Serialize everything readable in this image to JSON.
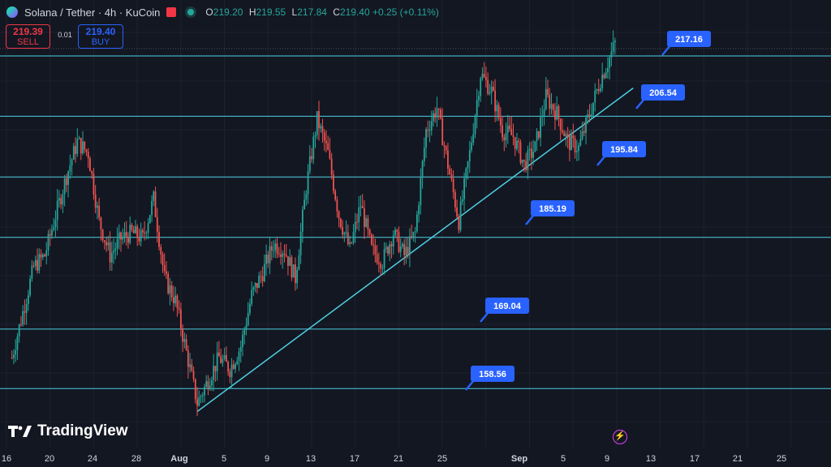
{
  "header": {
    "symbol": "Solana / Tether · 4h · KuCoin",
    "ohlc": {
      "o_label": "O",
      "o": "219.20",
      "h_label": "H",
      "h": "219.55",
      "l_label": "L",
      "l": "217.84",
      "c_label": "C",
      "c": "219.40",
      "change": "+0.25 (+0.11%)"
    }
  },
  "trade": {
    "sell_price": "219.39",
    "sell_label": "SELL",
    "spread": "0.01",
    "buy_price": "219.40",
    "buy_label": "BUY"
  },
  "branding": {
    "logo_text": "TradingView"
  },
  "colors": {
    "background": "#131722",
    "up": "#26a69a",
    "down": "#ef5350",
    "level_line": "#4dd0e1",
    "label_bg": "#2962ff"
  },
  "chart_data": {
    "type": "candlestick",
    "x_axis_labels": [
      "16",
      "20",
      "24",
      "28",
      "Aug",
      "5",
      "9",
      "13",
      "17",
      "21",
      "25",
      "Sep",
      "5",
      "9",
      "13",
      "17",
      "21",
      "25"
    ],
    "horizontal_levels": [
      217.16,
      206.54,
      195.84,
      185.19,
      169.04,
      158.56
    ],
    "level_labels": [
      "217.16",
      "206.54",
      "195.84",
      "185.19",
      "169.04",
      "158.56"
    ],
    "trendline": {
      "from": {
        "date": "Aug 2",
        "price": 154.5
      },
      "to": {
        "date": "Sep 11",
        "price": 211.5
      }
    },
    "close_path": [
      [
        "Jul 16",
        164
      ],
      [
        "Jul 17",
        172
      ],
      [
        "Jul 18",
        180
      ],
      [
        "Jul 19",
        182
      ],
      [
        "Jul 21",
        196
      ],
      [
        "Jul 22",
        202
      ],
      [
        "Jul 23",
        200
      ],
      [
        "Jul 24",
        188
      ],
      [
        "Jul 25",
        182
      ],
      [
        "Jul 26",
        185
      ],
      [
        "Jul 27",
        186
      ],
      [
        "Jul 28",
        185
      ],
      [
        "Jul 29",
        192
      ],
      [
        "Jul 30",
        178
      ],
      [
        "Jul 31",
        174
      ],
      [
        "Aug 1",
        165
      ],
      [
        "Aug 2",
        156
      ],
      [
        "Aug 3",
        160
      ],
      [
        "Aug 4",
        164
      ],
      [
        "Aug 5",
        162
      ],
      [
        "Aug 6",
        166
      ],
      [
        "Aug 7",
        175
      ],
      [
        "Aug 8",
        179
      ],
      [
        "Aug 9",
        184
      ],
      [
        "Aug 10",
        183
      ],
      [
        "Aug 11",
        178
      ],
      [
        "Aug 12",
        194
      ],
      [
        "Aug 13",
        206
      ],
      [
        "Aug 14",
        200
      ],
      [
        "Aug 15",
        189
      ],
      [
        "Aug 16",
        183
      ],
      [
        "Aug 17",
        191
      ],
      [
        "Aug 18",
        183
      ],
      [
        "Aug 19",
        181
      ],
      [
        "Aug 20",
        186
      ],
      [
        "Aug 21",
        182
      ],
      [
        "Aug 22",
        186
      ],
      [
        "Aug 23",
        204
      ],
      [
        "Aug 24",
        208
      ],
      [
        "Aug 25",
        198
      ],
      [
        "Aug 26",
        188
      ],
      [
        "Aug 27",
        200
      ],
      [
        "Aug 28",
        214
      ],
      [
        "Aug 29",
        211
      ],
      [
        "Aug 30",
        204
      ],
      [
        "Aug 31",
        203
      ],
      [
        "Sep 1",
        198
      ],
      [
        "Sep 2",
        201
      ],
      [
        "Sep 3",
        210
      ],
      [
        "Sep 4",
        207
      ],
      [
        "Sep 5",
        202
      ],
      [
        "Sep 6",
        201
      ],
      [
        "Sep 7",
        207
      ],
      [
        "Sep 8",
        213
      ],
      [
        "Sep 9",
        217.6
      ],
      [
        "Sep 9 20:00",
        219.4
      ]
    ]
  }
}
